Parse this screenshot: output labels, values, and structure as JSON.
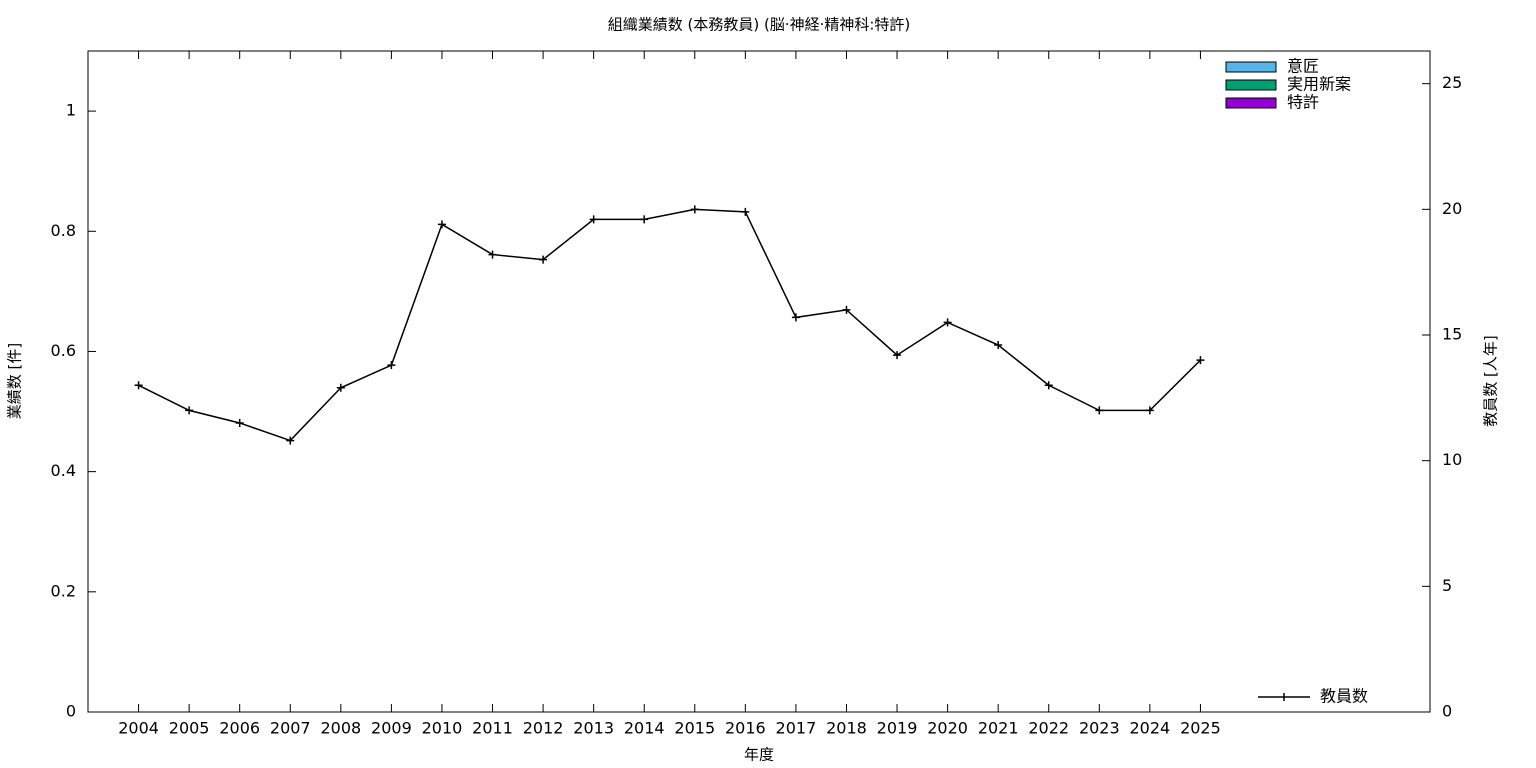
{
  "chart_data": {
    "type": "bar",
    "stacked": true,
    "title": "組織業績数 (本務教員) (脳·神経·精神科:特許)",
    "x_label": "年度",
    "y_label": "業績数 [件]",
    "y2_label": "教員数 [人年]",
    "categories": [
      "2004",
      "2005",
      "2006",
      "2007",
      "2008",
      "2009",
      "2010",
      "2011",
      "2012",
      "2013",
      "2014",
      "2015",
      "2016",
      "2017",
      "2018",
      "2019",
      "2020",
      "2021",
      "2022",
      "2023",
      "2024",
      "2025"
    ],
    "series": [
      {
        "name": "意匠",
        "color": "#56b4e9",
        "values": [
          0,
          0,
          0,
          0,
          0,
          0,
          0,
          0,
          0,
          0,
          0,
          0,
          0,
          0,
          0,
          0,
          0,
          0,
          0,
          0,
          0,
          0
        ]
      },
      {
        "name": "実用新案",
        "color": "#009e73",
        "values": [
          0,
          0,
          0,
          0,
          0,
          0,
          0,
          0,
          0,
          0,
          0,
          0,
          0,
          0,
          0,
          0,
          0,
          0,
          0,
          0,
          0,
          0
        ]
      },
      {
        "name": "特許",
        "color": "#9400d3",
        "values": [
          0,
          0,
          0,
          0,
          0,
          0,
          0,
          0,
          0,
          0,
          0,
          0,
          0,
          0,
          0,
          0,
          0,
          0,
          0,
          0,
          0,
          0
        ]
      },
      {
        "name": "教員数",
        "type": "line",
        "axis": "y2",
        "color": "#000000",
        "values": [
          13.0,
          12.0,
          11.5,
          10.8,
          12.9,
          13.8,
          19.4,
          18.2,
          18.0,
          19.6,
          19.6,
          20.0,
          19.9,
          15.7,
          16.0,
          14.2,
          15.5,
          14.6,
          13.0,
          12.0,
          12.0,
          14.0
        ]
      }
    ],
    "ylim": [
      0,
      1.1
    ],
    "yticks": [
      0,
      0.2,
      0.4,
      0.6,
      0.8,
      1
    ],
    "y2lim": [
      0,
      26.3
    ],
    "y2ticks": [
      0,
      5,
      10,
      15,
      20,
      25
    ]
  }
}
